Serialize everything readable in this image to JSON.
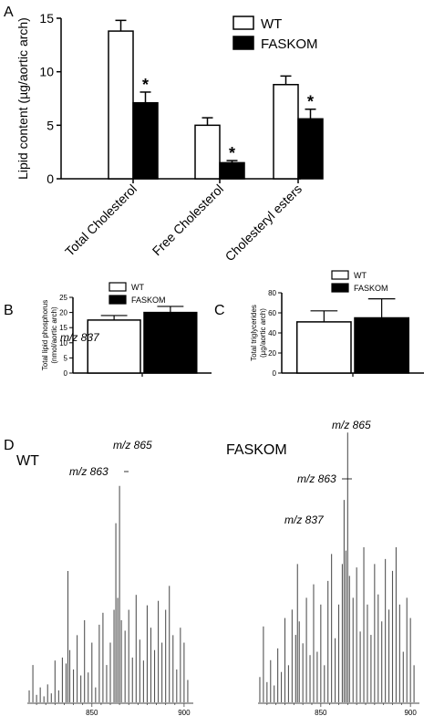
{
  "panels": {
    "A": "A",
    "B": "B",
    "C": "C",
    "D": "D"
  },
  "chart_data": [
    {
      "id": "A",
      "type": "bar",
      "ylabel": "Lipid content (µg/aortic arch)",
      "ylim": [
        0,
        15
      ],
      "yticks": [
        "0",
        "5",
        "10",
        "15"
      ],
      "categories": [
        "Total Cholesterol",
        "Free Cholesterol",
        "Cholesteryl esters"
      ],
      "series": [
        {
          "name": "WT",
          "color": "#ffffff",
          "values": [
            13.8,
            5.0,
            8.8
          ],
          "errors": [
            1.0,
            0.7,
            0.8
          ]
        },
        {
          "name": "FASKOM",
          "color": "#000000",
          "values": [
            7.1,
            1.5,
            5.6
          ],
          "errors": [
            1.0,
            0.2,
            0.9
          ]
        }
      ],
      "significance": [
        "*",
        "*",
        "*"
      ],
      "legend": "top-right"
    },
    {
      "id": "B",
      "type": "bar",
      "ylabel_lines": [
        "Total lipid phosphorus",
        "(nmol/aortic arch)"
      ],
      "ylim": [
        0,
        25
      ],
      "yticks": [
        "0",
        "5",
        "10",
        "15",
        "20",
        "25"
      ],
      "series": [
        {
          "name": "WT",
          "color": "#ffffff",
          "values": [
            17.5
          ],
          "errors": [
            1.5
          ]
        },
        {
          "name": "FASKOM",
          "color": "#000000",
          "values": [
            20.0
          ],
          "errors": [
            2.0
          ]
        }
      ],
      "legend": "top"
    },
    {
      "id": "C",
      "type": "bar",
      "ylabel_lines": [
        "Total triglycerides",
        "(µg/aortic arch)"
      ],
      "ylim": [
        0,
        80
      ],
      "yticks": [
        "0",
        "20",
        "40",
        "60",
        "80"
      ],
      "series": [
        {
          "name": "WT",
          "color": "#ffffff",
          "values": [
            51
          ],
          "errors": [
            11
          ]
        },
        {
          "name": "FASKOM",
          "color": "#000000",
          "values": [
            55
          ],
          "errors": [
            19
          ]
        }
      ],
      "legend": "top"
    },
    {
      "id": "D1",
      "type": "line",
      "title": "WT",
      "xlim": [
        815,
        905
      ],
      "xticks": [
        "850",
        "900"
      ],
      "x": [
        816,
        818,
        820,
        822,
        824,
        826,
        828,
        830,
        832,
        834,
        836,
        837,
        838,
        840,
        842,
        844,
        846,
        848,
        850,
        852,
        854,
        856,
        858,
        860,
        862,
        863,
        864,
        865,
        866,
        868,
        870,
        872,
        874,
        876,
        878,
        880,
        882,
        884,
        886,
        888,
        890,
        892,
        894,
        896,
        898,
        900,
        902
      ],
      "y": [
        8,
        25,
        5,
        10,
        4,
        12,
        6,
        28,
        8,
        30,
        26,
        88,
        35,
        22,
        45,
        18,
        55,
        20,
        40,
        10,
        52,
        60,
        25,
        40,
        62,
        120,
        70,
        145,
        55,
        48,
        62,
        30,
        72,
        42,
        28,
        65,
        50,
        35,
        68,
        40,
        62,
        78,
        45,
        22,
        50,
        40,
        15
      ],
      "annotations": [
        {
          "label": "m/z 837",
          "x": 837
        },
        {
          "label": "m/z 863",
          "x": 863
        },
        {
          "label": "m/z 865",
          "x": 865
        }
      ]
    },
    {
      "id": "D2",
      "type": "line",
      "title": "FASKOM",
      "xlim": [
        815,
        905
      ],
      "xticks": [
        "850",
        "900"
      ],
      "x": [
        816,
        818,
        820,
        822,
        824,
        826,
        828,
        830,
        832,
        834,
        836,
        837,
        838,
        840,
        842,
        844,
        846,
        848,
        850,
        852,
        854,
        856,
        858,
        860,
        862,
        863,
        864,
        865,
        866,
        868,
        870,
        872,
        874,
        876,
        878,
        880,
        882,
        884,
        886,
        888,
        890,
        892,
        894,
        896,
        898,
        900,
        902
      ],
      "y": [
        15,
        45,
        12,
        25,
        10,
        32,
        18,
        50,
        22,
        55,
        40,
        82,
        48,
        35,
        62,
        28,
        70,
        30,
        58,
        22,
        72,
        88,
        38,
        58,
        82,
        120,
        90,
        160,
        75,
        62,
        80,
        42,
        92,
        58,
        40,
        82,
        64,
        48,
        85,
        55,
        78,
        92,
        58,
        30,
        62,
        50,
        22
      ],
      "annotations": [
        {
          "label": "m/z 837",
          "x": 837
        },
        {
          "label": "m/z 863",
          "x": 863
        },
        {
          "label": "m/z 865",
          "x": 865
        }
      ]
    }
  ]
}
